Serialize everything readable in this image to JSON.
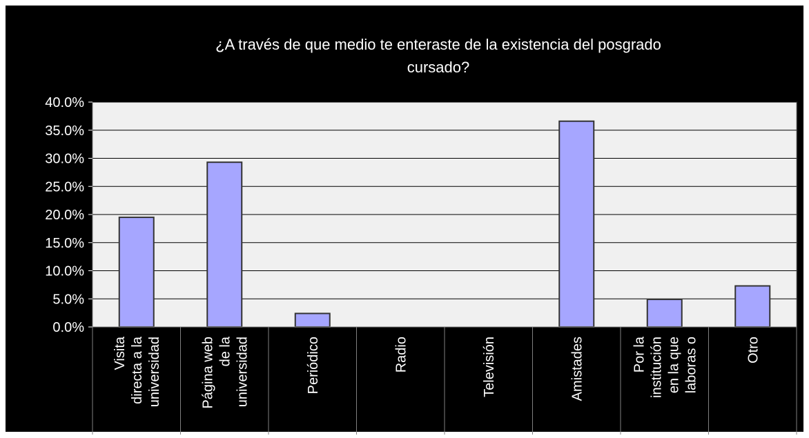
{
  "chart_data": {
    "type": "bar",
    "title": "¿A través de que medio te enteraste de la existencia del posgrado cursado?",
    "title_lines": [
      "¿A través de que medio te enteraste de la existencia del posgrado",
      "cursado?"
    ],
    "categories": [
      "Visita directa a la universidad",
      "Página web de la universidad",
      "Periódico",
      "Radio",
      "Televisión",
      "Amistades",
      "Por la institución en la que laboras o",
      "Otro"
    ],
    "category_lines": [
      [
        "Visita",
        "directa a la",
        "universidad"
      ],
      [
        "Página web",
        "de la",
        "universidad"
      ],
      [
        "Periódico"
      ],
      [
        "Radio"
      ],
      [
        "Televisión"
      ],
      [
        "Amistades"
      ],
      [
        "Por la",
        "institución",
        "en la que",
        "laboras o"
      ],
      [
        "Otro"
      ]
    ],
    "values": [
      0.195,
      0.293,
      0.024,
      0.0,
      0.0,
      0.366,
      0.049,
      0.073
    ],
    "ylim": [
      0,
      0.4
    ],
    "yticks": [
      0,
      0.05,
      0.1,
      0.15,
      0.2,
      0.25,
      0.3,
      0.35,
      0.4
    ],
    "ytick_labels": [
      "0.0%",
      "5.0%",
      "10.0%",
      "15.0%",
      "20.0%",
      "25.0%",
      "30.0%",
      "35.0%",
      "40.0%"
    ],
    "xlabel": "",
    "ylabel": "",
    "grid": true,
    "legend": "none",
    "colors": {
      "background": "#000000",
      "plot_area": "#f0f0f0",
      "bar_fill": "#a6a6ff",
      "bar_stroke": "#333333",
      "text": "#ffffff",
      "gridline": "#000000",
      "outer_border": "#ffffff"
    }
  }
}
